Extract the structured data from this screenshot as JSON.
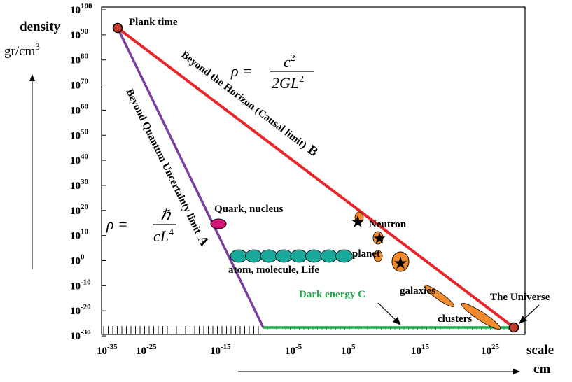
{
  "axes": {
    "y_title": "density",
    "y_unit_base": "gr/cm",
    "y_unit_exp": "3",
    "x_title": "scale",
    "x_unit": "cm",
    "y_ticks": [
      {
        "base": "10",
        "exp": "100"
      },
      {
        "base": "10",
        "exp": "90"
      },
      {
        "base": "10",
        "exp": "80"
      },
      {
        "base": "10",
        "exp": "70"
      },
      {
        "base": "10",
        "exp": "60"
      },
      {
        "base": "10",
        "exp": "50"
      },
      {
        "base": "10",
        "exp": "40"
      },
      {
        "base": "10",
        "exp": "30"
      },
      {
        "base": "10",
        "exp": "20"
      },
      {
        "base": "10",
        "exp": "10"
      },
      {
        "base": "10",
        "exp": "0"
      },
      {
        "base": "10",
        "exp": "-10"
      },
      {
        "base": "10",
        "exp": "-20"
      },
      {
        "base": "10",
        "exp": "-30"
      }
    ],
    "x_ticks": [
      {
        "base": "10",
        "exp": "-35"
      },
      {
        "base": "10",
        "exp": "-25"
      },
      {
        "base": "10",
        "exp": "-15"
      },
      {
        "base": "10",
        "exp": "-5"
      },
      {
        "base": "10",
        "exp": "5"
      },
      {
        "base": "10",
        "exp": "15"
      },
      {
        "base": "10",
        "exp": "25"
      }
    ]
  },
  "labels": {
    "plank_time": "Plank time",
    "beyond_horizon": "Beyond the Horizon (Causal limit)",
    "horizon_letter": "B",
    "beyond_quantum": "Beyond Quantum Uncertainty limit",
    "quantum_letter": "A",
    "quark": "Quark, nucleus",
    "neutron": "Neutron",
    "planet": "planet",
    "atom": "atom, molecule, Life",
    "dark_energy": "Dark energy C",
    "galaxies": "galaxies",
    "clusters": "clusters",
    "universe": "The Universe"
  },
  "formulas": {
    "horizon": {
      "lhs": "ρ =",
      "num_base": "c",
      "num_exp": "2",
      "den_base": "2GL",
      "den_exp": "2"
    },
    "quantum": {
      "lhs": "ρ =",
      "num": "ℏ",
      "den_base": "cL",
      "den_exp": "4"
    }
  },
  "colors": {
    "horizon_line": "#e8262a",
    "quantum_line": "#7b3fa0",
    "dark_energy_line": "#22a84a",
    "dark_energy_text": "#22a84a",
    "quark_fill": "#d6157a",
    "atom_fill": "#19a99a",
    "orange_fill": "#f08a2c",
    "endpoint_fill": "#c0392b"
  },
  "chart_data": {
    "type": "scatter",
    "x_axis": {
      "label": "scale cm",
      "scale": "log10",
      "range_exp": [
        -35,
        25
      ]
    },
    "y_axis": {
      "label": "density gr/cm3",
      "scale": "log10",
      "range_exp": [
        -30,
        100
      ]
    },
    "lines": [
      {
        "name": "Beyond the Horizon (Causal limit) B",
        "from_log": [
          -35,
          92
        ],
        "to_log": [
          27,
          -30
        ]
      },
      {
        "name": "Beyond Quantum Uncertainty limit A",
        "from_log": [
          -35,
          92
        ],
        "to_log": [
          -14,
          -30
        ]
      },
      {
        "name": "Dark energy C",
        "from_log": [
          -14,
          -30
        ],
        "to_log": [
          27,
          -30
        ]
      }
    ],
    "objects": [
      {
        "name": "Plank time",
        "x_log": -35,
        "y_log": 92
      },
      {
        "name": "Quark, nucleus",
        "x_log": -20,
        "y_log": 15
      },
      {
        "name": "atom, molecule, Life",
        "x_log": -10,
        "y_log": 1
      },
      {
        "name": "Neutron",
        "x_log": 5,
        "y_log": 15
      },
      {
        "name": "planet",
        "x_log": 8,
        "y_log": 3
      },
      {
        "name": "galaxies",
        "x_log": 18,
        "y_log": -14
      },
      {
        "name": "clusters",
        "x_log": 22,
        "y_log": -22
      },
      {
        "name": "The Universe",
        "x_log": 27,
        "y_log": -30
      }
    ]
  }
}
